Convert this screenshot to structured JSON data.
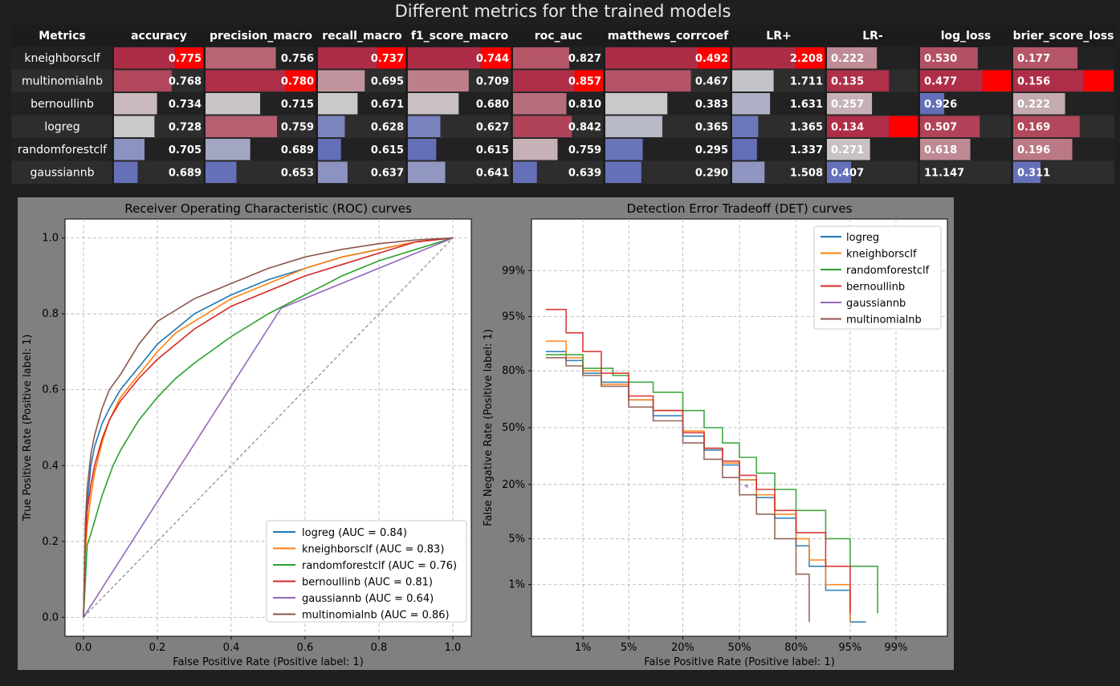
{
  "title": "Different metrics for the trained models",
  "table": {
    "header_label": "Metrics",
    "columns": [
      "accuracy",
      "precision_macro",
      "recall_macro",
      "f1_score_macro",
      "roc_auc",
      "matthews_corrcoef",
      "LR+",
      "LR-",
      "log_loss",
      "brier_score_loss"
    ],
    "rows": [
      {
        "name": "kneighborsclf",
        "values": [
          "0.775",
          "0.756",
          "0.737",
          "0.744",
          "0.827",
          "0.492",
          "2.208",
          "0.222",
          "0.530",
          "0.177"
        ]
      },
      {
        "name": "multinomialnb",
        "values": [
          "0.768",
          "0.780",
          "0.695",
          "0.709",
          "0.857",
          "0.467",
          "1.711",
          "0.135",
          "0.477",
          "0.156"
        ]
      },
      {
        "name": "bernoullinb",
        "values": [
          "0.734",
          "0.715",
          "0.671",
          "0.680",
          "0.810",
          "0.383",
          "1.631",
          "0.257",
          "0.926",
          "0.222"
        ]
      },
      {
        "name": "logreg",
        "values": [
          "0.728",
          "0.759",
          "0.628",
          "0.627",
          "0.842",
          "0.365",
          "1.365",
          "0.134",
          "0.507",
          "0.169"
        ]
      },
      {
        "name": "randomforestclf",
        "values": [
          "0.705",
          "0.689",
          "0.615",
          "0.615",
          "0.759",
          "0.295",
          "1.337",
          "0.271",
          "0.618",
          "0.196"
        ]
      },
      {
        "name": "gaussiannb",
        "values": [
          "0.689",
          "0.653",
          "0.637",
          "0.641",
          "0.639",
          "0.290",
          "1.508",
          "0.407",
          "11.147",
          "0.311"
        ]
      }
    ],
    "highlight_color": "#ff0000"
  },
  "chart_data": [
    {
      "type": "line",
      "title": "Receiver Operating Characteristic (ROC) curves",
      "xlabel": "False Positive Rate (Positive label: 1)",
      "ylabel": "True Positive Rate (Positive label: 1)",
      "xlim": [
        -0.05,
        1.05
      ],
      "ylim": [
        -0.05,
        1.05
      ],
      "xticks": [
        "0.0",
        "0.2",
        "0.4",
        "0.6",
        "0.8",
        "1.0"
      ],
      "yticks": [
        "0.0",
        "0.2",
        "0.4",
        "0.6",
        "0.8",
        "1.0"
      ],
      "grid": true,
      "legend_position": "lower-right",
      "reference_line": {
        "x": [
          0,
          1
        ],
        "y": [
          0,
          1
        ],
        "color": "#888888"
      },
      "series": [
        {
          "name": "logreg",
          "label": "logreg (AUC = 0.84)",
          "color": "#1f77b4",
          "x": [
            0,
            0.005,
            0.01,
            0.02,
            0.03,
            0.05,
            0.07,
            0.1,
            0.15,
            0.2,
            0.25,
            0.3,
            0.4,
            0.5,
            0.6,
            0.7,
            0.8,
            0.9,
            1.0
          ],
          "y": [
            0,
            0.22,
            0.3,
            0.4,
            0.45,
            0.51,
            0.55,
            0.6,
            0.66,
            0.72,
            0.76,
            0.8,
            0.85,
            0.89,
            0.92,
            0.95,
            0.97,
            0.99,
            1.0
          ]
        },
        {
          "name": "kneighborsclf",
          "label": "kneighborsclf (AUC = 0.83)",
          "color": "#ff7f0e",
          "x": [
            0,
            0.005,
            0.01,
            0.02,
            0.03,
            0.05,
            0.07,
            0.1,
            0.15,
            0.2,
            0.25,
            0.3,
            0.4,
            0.5,
            0.6,
            0.7,
            0.8,
            0.9,
            1.0
          ],
          "y": [
            0,
            0.17,
            0.24,
            0.32,
            0.38,
            0.46,
            0.52,
            0.58,
            0.64,
            0.7,
            0.75,
            0.78,
            0.84,
            0.88,
            0.92,
            0.95,
            0.97,
            0.99,
            1.0
          ]
        },
        {
          "name": "randomforestclf",
          "label": "randomforestclf (AUC = 0.76)",
          "color": "#2ca02c",
          "x": [
            0,
            0.01,
            0.02,
            0.05,
            0.08,
            0.1,
            0.15,
            0.2,
            0.25,
            0.3,
            0.4,
            0.5,
            0.6,
            0.7,
            0.8,
            0.9,
            1.0
          ],
          "y": [
            0,
            0.19,
            0.22,
            0.32,
            0.4,
            0.44,
            0.52,
            0.58,
            0.63,
            0.67,
            0.74,
            0.8,
            0.85,
            0.9,
            0.94,
            0.97,
            1.0
          ]
        },
        {
          "name": "bernoullinb",
          "label": "bernoullinb (AUC = 0.81)",
          "color": "#d62728",
          "x": [
            0,
            0.005,
            0.01,
            0.02,
            0.03,
            0.05,
            0.07,
            0.1,
            0.15,
            0.2,
            0.25,
            0.3,
            0.4,
            0.5,
            0.6,
            0.7,
            0.8,
            0.9,
            1.0
          ],
          "y": [
            0,
            0.2,
            0.28,
            0.35,
            0.4,
            0.47,
            0.52,
            0.57,
            0.63,
            0.68,
            0.72,
            0.76,
            0.82,
            0.86,
            0.9,
            0.93,
            0.96,
            0.99,
            1.0
          ]
        },
        {
          "name": "gaussiannb",
          "label": "gaussiannb (AUC = 0.64)",
          "color": "#9467bd",
          "x": [
            0,
            0.535,
            1.0
          ],
          "y": [
            0,
            0.815,
            1.0
          ]
        },
        {
          "name": "multinomialnb",
          "label": "multinomialnb (AUC = 0.86)",
          "color": "#8c564b",
          "x": [
            0,
            0.005,
            0.01,
            0.02,
            0.03,
            0.05,
            0.07,
            0.1,
            0.15,
            0.2,
            0.25,
            0.3,
            0.4,
            0.5,
            0.6,
            0.7,
            0.8,
            0.9,
            1.0
          ],
          "y": [
            0,
            0.25,
            0.34,
            0.43,
            0.48,
            0.55,
            0.6,
            0.64,
            0.72,
            0.78,
            0.81,
            0.84,
            0.88,
            0.92,
            0.95,
            0.97,
            0.985,
            0.995,
            1.0
          ]
        }
      ]
    },
    {
      "type": "line",
      "title": "Detection Error Tradeoff (DET) curves",
      "xlabel": "False Positive Rate (Positive label: 1)",
      "ylabel": "False Negative Rate (Positive label: 1)",
      "scale": "probit",
      "xlim": [
        0.001,
        0.999
      ],
      "ylim": [
        0.001,
        0.999
      ],
      "xticks": [
        "1%",
        "5%",
        "20%",
        "50%",
        "80%",
        "95%",
        "99%"
      ],
      "yticks": [
        "1%",
        "5%",
        "20%",
        "50%",
        "80%",
        "95%",
        "99%"
      ],
      "grid": true,
      "legend_position": "upper-right",
      "series": [
        {
          "name": "logreg",
          "color": "#1f77b4",
          "x": [
            0.002,
            0.005,
            0.01,
            0.02,
            0.05,
            0.1,
            0.2,
            0.3,
            0.4,
            0.5,
            0.6,
            0.7,
            0.8,
            0.85,
            0.9,
            0.95,
            0.97
          ],
          "y": [
            0.87,
            0.84,
            0.79,
            0.75,
            0.66,
            0.57,
            0.45,
            0.37,
            0.29,
            0.22,
            0.15,
            0.09,
            0.04,
            0.02,
            0.008,
            0.002,
            0.002
          ]
        },
        {
          "name": "kneighborsclf",
          "color": "#ff7f0e",
          "x": [
            0.002,
            0.005,
            0.01,
            0.02,
            0.05,
            0.1,
            0.2,
            0.3,
            0.4,
            0.5,
            0.6,
            0.7,
            0.8,
            0.85,
            0.9,
            0.95
          ],
          "y": [
            0.9,
            0.85,
            0.8,
            0.74,
            0.66,
            0.6,
            0.48,
            0.38,
            0.3,
            0.22,
            0.16,
            0.1,
            0.05,
            0.025,
            0.01,
            0.002
          ]
        },
        {
          "name": "randomforestclf",
          "color": "#2ca02c",
          "x": [
            0.002,
            0.01,
            0.03,
            0.05,
            0.1,
            0.2,
            0.3,
            0.4,
            0.5,
            0.6,
            0.7,
            0.8,
            0.9,
            0.95,
            0.98
          ],
          "y": [
            0.86,
            0.81,
            0.78,
            0.75,
            0.7,
            0.6,
            0.5,
            0.41,
            0.33,
            0.25,
            0.18,
            0.11,
            0.05,
            0.02,
            0.003
          ]
        },
        {
          "name": "bernoullinb",
          "color": "#d62728",
          "x": [
            0.002,
            0.005,
            0.01,
            0.02,
            0.05,
            0.1,
            0.2,
            0.3,
            0.4,
            0.5,
            0.6,
            0.7,
            0.8,
            0.9,
            0.95
          ],
          "y": [
            0.96,
            0.92,
            0.87,
            0.79,
            0.68,
            0.6,
            0.47,
            0.38,
            0.31,
            0.24,
            0.18,
            0.11,
            0.06,
            0.02,
            0.003
          ]
        },
        {
          "name": "gaussiannb",
          "color": "#9467bd",
          "x": [
            0.53,
            0.545
          ],
          "y": [
            0.195,
            0.185
          ]
        },
        {
          "name": "multinomialnb",
          "color": "#8c564b",
          "x": [
            0.002,
            0.005,
            0.01,
            0.02,
            0.05,
            0.1,
            0.2,
            0.3,
            0.4,
            0.5,
            0.6,
            0.7,
            0.8,
            0.85
          ],
          "y": [
            0.85,
            0.82,
            0.78,
            0.73,
            0.62,
            0.54,
            0.41,
            0.32,
            0.23,
            0.16,
            0.1,
            0.05,
            0.015,
            0.002
          ]
        }
      ]
    }
  ]
}
